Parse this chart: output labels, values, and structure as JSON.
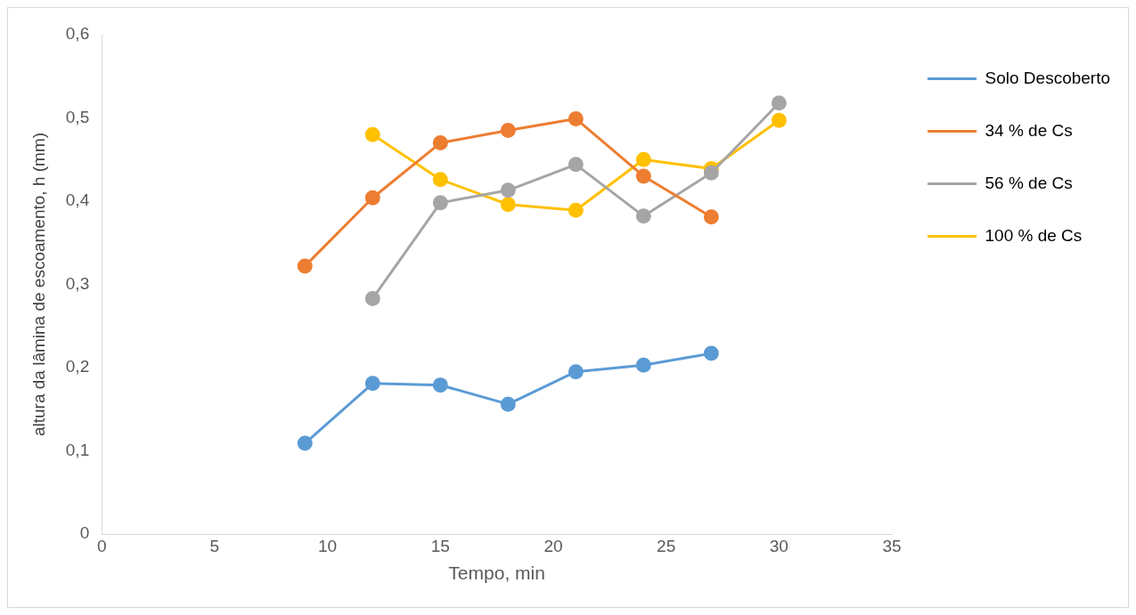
{
  "chart_data": {
    "type": "line",
    "xlabel": "Tempo, min",
    "ylabel": "altura da lâmina de escoamento, h (mm)",
    "xlim": [
      0,
      35
    ],
    "xticks": [
      0,
      5,
      10,
      15,
      20,
      25,
      30,
      35
    ],
    "ylim": [
      0,
      0.6
    ],
    "yticks": [
      0,
      {
        "value": 0.1,
        "label": "0,1"
      },
      {
        "value": 0.2,
        "label": "0,2"
      },
      {
        "value": 0.3,
        "label": "0,3"
      },
      {
        "value": 0.4,
        "label": "0,4"
      },
      {
        "value": 0.5,
        "label": "0,5"
      },
      {
        "value": 0.6,
        "label": "0,6"
      }
    ],
    "grid": false,
    "legend": "right",
    "marker": "circle",
    "line_style": "solid",
    "series": [
      {
        "name": "Solo Descoberto",
        "color": "#5b9bd5",
        "x": [
          9,
          12,
          15,
          18,
          21,
          24,
          27
        ],
        "values": [
          0.109,
          0.181,
          0.179,
          0.156,
          0.195,
          0.203,
          0.217
        ]
      },
      {
        "name": "34 % de Cs",
        "color": "#ed7d31",
        "x": [
          9,
          12,
          15,
          18,
          21,
          24,
          27
        ],
        "values": [
          0.322,
          0.404,
          0.47,
          0.485,
          0.499,
          0.43,
          0.381
        ]
      },
      {
        "name": "56 % de Cs",
        "color": "#a5a5a5",
        "x": [
          12,
          15,
          18,
          21,
          24,
          27,
          30
        ],
        "values": [
          0.283,
          0.398,
          0.413,
          0.444,
          0.382,
          0.434,
          0.518
        ]
      },
      {
        "name": "100 % de Cs",
        "color": "#ffc000",
        "x": [
          12,
          15,
          18,
          21,
          24,
          27,
          30
        ],
        "values": [
          0.48,
          0.426,
          0.396,
          0.389,
          0.45,
          0.439,
          0.497
        ]
      }
    ]
  }
}
